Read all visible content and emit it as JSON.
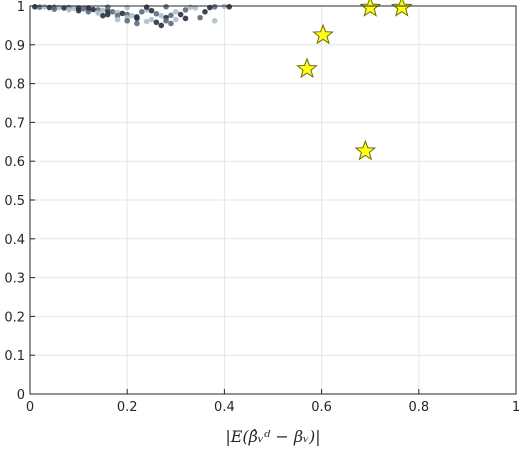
{
  "chart_data": {
    "type": "scatter",
    "title": "",
    "xlabel": "|E(β̂ᵥᵈ − βᵥ)|",
    "ylabel": "",
    "xlim": [
      0,
      1
    ],
    "ylim": [
      0,
      1
    ],
    "grid": true,
    "xticks": [
      "0",
      "0.2",
      "0.4",
      "0.6",
      "0.8",
      "1"
    ],
    "yticks": [
      "0",
      "0.1",
      "0.2",
      "0.3",
      "0.4",
      "0.5",
      "0.6",
      "0.7",
      "0.8",
      "0.9",
      "1"
    ],
    "colors": {
      "dots_dark": "#2b2d45",
      "dots_mid": "#5b6c7e",
      "dots_light": "#a9c2c4",
      "star_fill": "#ffff1a",
      "star_edge": "#6b6b00",
      "grid": "#e6e6e6",
      "axis": "#262626"
    },
    "series": [
      {
        "marker": "dot",
        "points": [
          [
            0.01,
            0.998
          ],
          [
            0.02,
            0.997
          ],
          [
            0.03,
            0.998
          ],
          [
            0.04,
            0.996
          ],
          [
            0.05,
            0.997
          ],
          [
            0.06,
            0.996
          ],
          [
            0.07,
            0.995
          ],
          [
            0.08,
            0.996
          ],
          [
            0.09,
            0.994
          ],
          [
            0.1,
            0.995
          ],
          [
            0.11,
            0.993
          ],
          [
            0.12,
            0.992
          ],
          [
            0.13,
            0.991
          ],
          [
            0.14,
            0.99
          ],
          [
            0.15,
            0.989
          ],
          [
            0.16,
            0.987
          ],
          [
            0.17,
            0.985
          ],
          [
            0.18,
            0.983
          ],
          [
            0.19,
            0.981
          ],
          [
            0.2,
            0.978
          ],
          [
            0.21,
            0.975
          ],
          [
            0.22,
            0.972
          ],
          [
            0.23,
            0.985
          ],
          [
            0.24,
            0.99
          ],
          [
            0.25,
            0.988
          ],
          [
            0.26,
            0.98
          ],
          [
            0.27,
            0.975
          ],
          [
            0.28,
            0.97
          ],
          [
            0.29,
            0.976
          ],
          [
            0.3,
            0.985
          ],
          [
            0.31,
            0.978
          ],
          [
            0.32,
            0.99
          ],
          [
            0.34,
            0.995
          ],
          [
            0.36,
            0.985
          ],
          [
            0.38,
            0.998
          ],
          [
            0.4,
            0.999
          ],
          [
            0.41,
            0.998
          ],
          [
            0.05,
            0.992
          ],
          [
            0.08,
            0.99
          ],
          [
            0.1,
            0.988
          ],
          [
            0.12,
            0.985
          ],
          [
            0.14,
            0.982
          ],
          [
            0.16,
            0.978
          ],
          [
            0.18,
            0.975
          ],
          [
            0.2,
            0.97
          ],
          [
            0.22,
            0.968
          ],
          [
            0.2,
            0.962
          ],
          [
            0.24,
            0.96
          ],
          [
            0.26,
            0.958
          ],
          [
            0.28,
            0.962
          ],
          [
            0.3,
            0.965
          ],
          [
            0.27,
            0.95
          ],
          [
            0.22,
            0.955
          ],
          [
            0.18,
            0.965
          ],
          [
            0.15,
            0.975
          ],
          [
            0.35,
            0.97
          ],
          [
            0.38,
            0.962
          ],
          [
            0.32,
            0.968
          ],
          [
            0.29,
            0.955
          ],
          [
            0.25,
            0.965
          ],
          [
            0.12,
            0.995
          ],
          [
            0.16,
            0.997
          ],
          [
            0.2,
            0.996
          ],
          [
            0.24,
            0.997
          ],
          [
            0.28,
            0.998
          ],
          [
            0.33,
            0.997
          ],
          [
            0.37,
            0.996
          ]
        ]
      },
      {
        "marker": "star",
        "points": [
          [
            0.57,
            0.838
          ],
          [
            0.603,
            0.925
          ],
          [
            0.7,
            0.996
          ],
          [
            0.765,
            0.996
          ],
          [
            0.69,
            0.626
          ]
        ]
      }
    ]
  }
}
